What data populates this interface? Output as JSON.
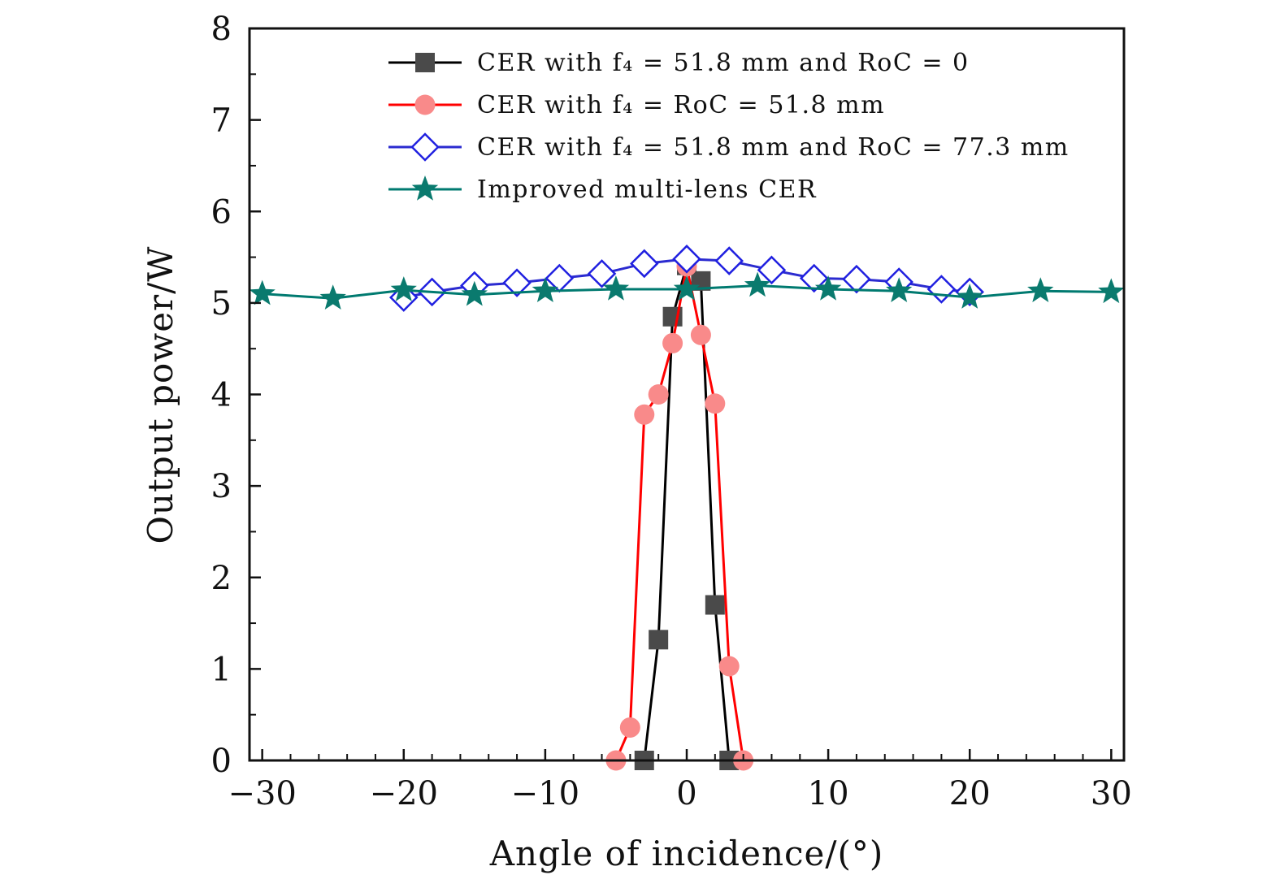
{
  "chart_data": {
    "type": "line",
    "title": "",
    "xlabel": "Angle of incidence/(°)",
    "ylabel": "Output power/W",
    "xlim": [
      -30.9,
      30.9
    ],
    "ylim": [
      0,
      8
    ],
    "xticks": [
      -30,
      -20,
      -10,
      0,
      10,
      20,
      30
    ],
    "xtick_labels": [
      "−30",
      "−20",
      "−10",
      "0",
      "10",
      "20",
      "30"
    ],
    "yticks": [
      0,
      1,
      2,
      3,
      4,
      5,
      6,
      7,
      8
    ],
    "ytick_labels": [
      "0",
      "1",
      "2",
      "3",
      "4",
      "5",
      "6",
      "7",
      "8"
    ],
    "grid": false,
    "legend_placement": "top",
    "series": [
      {
        "name": "CER with f₄ = 51.8 mm and RoC = 0",
        "color": "#000000",
        "marker": "square",
        "marker_color": "#4a4a4a",
        "x": [
          -3,
          -2,
          -1,
          0,
          1,
          2,
          3
        ],
        "y": [
          0,
          1.32,
          4.85,
          5.41,
          5.24,
          1.7,
          0
        ]
      },
      {
        "name": "CER with f₄ = RoC = 51.8 mm",
        "color": "#ff0000",
        "marker": "circle",
        "marker_color": "#f98a8a",
        "x": [
          -5,
          -4,
          -3,
          -2,
          -1,
          0,
          1,
          2,
          3,
          4
        ],
        "y": [
          0,
          0.36,
          3.78,
          4.0,
          4.56,
          5.4,
          4.65,
          3.9,
          1.03,
          0
        ]
      },
      {
        "name": "CER with f₄ = 51.8 mm and RoC = 77.3 mm",
        "color": "#2b2bd0",
        "marker": "diamond-open",
        "marker_color": "#2020e0",
        "x": [
          -20,
          -18,
          -15,
          -12,
          -9,
          -6,
          -3,
          0,
          3,
          6,
          9,
          12,
          15,
          18,
          20
        ],
        "y": [
          5.06,
          5.12,
          5.19,
          5.22,
          5.27,
          5.32,
          5.43,
          5.48,
          5.46,
          5.36,
          5.27,
          5.26,
          5.23,
          5.15,
          5.12
        ]
      },
      {
        "name": "Improved multi-lens CER",
        "color": "#007a70",
        "marker": "star",
        "marker_color": "#0a7a6e",
        "x": [
          -30,
          -25,
          -20,
          -15,
          -10,
          -5,
          0,
          5,
          10,
          15,
          20,
          25,
          30
        ],
        "y": [
          5.1,
          5.05,
          5.14,
          5.09,
          5.13,
          5.15,
          5.15,
          5.19,
          5.15,
          5.13,
          5.06,
          5.13,
          5.12
        ]
      }
    ]
  }
}
